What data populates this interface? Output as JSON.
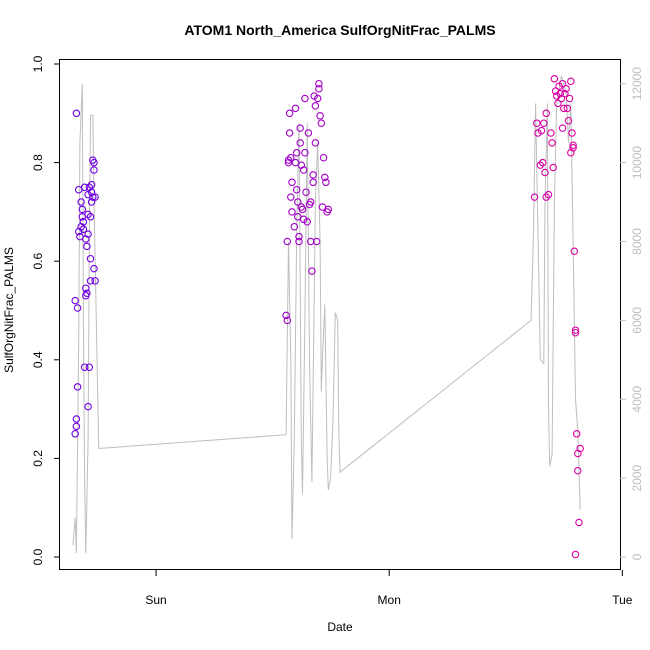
{
  "chart_data": {
    "type": "scatter",
    "title": "ATOM1 North_America SulfOrgNitFrac_PALMS",
    "xlabel": "Date",
    "ylabel": "SulfOrgNitFrac_PALMS",
    "x_ticks": [
      "Sun",
      "Mon",
      "Tue"
    ],
    "y_ticks": [
      "0.0",
      "0.2",
      "0.4",
      "0.6",
      "0.8",
      "1.0"
    ],
    "ylim": [
      0,
      1
    ],
    "y2_ticks": [
      "0",
      "2000",
      "4000",
      "6000",
      "8000",
      "10000",
      "12000"
    ],
    "y2lim": [
      0,
      12500
    ],
    "xlim": [
      -0.41,
      1.98
    ],
    "grid": false,
    "colors": {
      "points_start": "#6a00e8",
      "points_end": "#e8009a",
      "secondary_line": "#bebebe"
    },
    "points": [
      [
        -0.345,
        0.52
      ],
      [
        -0.34,
        0.9
      ],
      [
        -0.335,
        0.505
      ],
      [
        -0.34,
        0.28
      ],
      [
        -0.34,
        0.265
      ],
      [
        -0.345,
        0.25
      ],
      [
        -0.335,
        0.345
      ],
      [
        -0.33,
        0.745
      ],
      [
        -0.33,
        0.66
      ],
      [
        -0.325,
        0.65
      ],
      [
        -0.32,
        0.67
      ],
      [
        -0.32,
        0.72
      ],
      [
        -0.315,
        0.69
      ],
      [
        -0.315,
        0.705
      ],
      [
        -0.31,
        0.68
      ],
      [
        -0.31,
        0.665
      ],
      [
        -0.305,
        0.75
      ],
      [
        -0.3,
        0.645
      ],
      [
        -0.305,
        0.385
      ],
      [
        -0.3,
        0.53
      ],
      [
        -0.3,
        0.545
      ],
      [
        -0.295,
        0.535
      ],
      [
        -0.295,
        0.63
      ],
      [
        -0.29,
        0.655
      ],
      [
        -0.29,
        0.735
      ],
      [
        -0.29,
        0.695
      ],
      [
        -0.285,
        0.75
      ],
      [
        -0.29,
        0.305
      ],
      [
        -0.285,
        0.385
      ],
      [
        -0.28,
        0.56
      ],
      [
        -0.28,
        0.605
      ],
      [
        -0.28,
        0.69
      ],
      [
        -0.275,
        0.72
      ],
      [
        -0.275,
        0.74
      ],
      [
        -0.275,
        0.755
      ],
      [
        -0.27,
        0.805
      ],
      [
        -0.27,
        0.73
      ],
      [
        -0.265,
        0.8
      ],
      [
        -0.265,
        0.785
      ],
      [
        -0.265,
        0.585
      ],
      [
        -0.26,
        0.56
      ],
      [
        -0.26,
        0.73
      ],
      [
        0.555,
        0.49
      ],
      [
        0.56,
        0.48
      ],
      [
        0.56,
        0.64
      ],
      [
        0.565,
        0.8
      ],
      [
        0.565,
        0.805
      ],
      [
        0.57,
        0.9
      ],
      [
        0.57,
        0.86
      ],
      [
        0.575,
        0.81
      ],
      [
        0.575,
        0.73
      ],
      [
        0.58,
        0.76
      ],
      [
        0.58,
        0.7
      ],
      [
        0.59,
        0.67
      ],
      [
        0.595,
        0.8
      ],
      [
        0.595,
        0.91
      ],
      [
        0.6,
        0.82
      ],
      [
        0.6,
        0.745
      ],
      [
        0.605,
        0.72
      ],
      [
        0.605,
        0.69
      ],
      [
        0.61,
        0.64
      ],
      [
        0.61,
        0.65
      ],
      [
        0.615,
        0.87
      ],
      [
        0.615,
        0.84
      ],
      [
        0.62,
        0.795
      ],
      [
        0.62,
        0.71
      ],
      [
        0.625,
        0.705
      ],
      [
        0.63,
        0.785
      ],
      [
        0.63,
        0.685
      ],
      [
        0.635,
        0.93
      ],
      [
        0.635,
        0.82
      ],
      [
        0.64,
        0.74
      ],
      [
        0.645,
        0.68
      ],
      [
        0.65,
        0.86
      ],
      [
        0.655,
        0.715
      ],
      [
        0.66,
        0.72
      ],
      [
        0.66,
        0.64
      ],
      [
        0.665,
        0.58
      ],
      [
        0.67,
        0.775
      ],
      [
        0.67,
        0.76
      ],
      [
        0.675,
        0.935
      ],
      [
        0.68,
        0.915
      ],
      [
        0.68,
        0.84
      ],
      [
        0.685,
        0.64
      ],
      [
        0.69,
        0.93
      ],
      [
        0.695,
        0.96
      ],
      [
        0.695,
        0.95
      ],
      [
        0.7,
        0.895
      ],
      [
        0.705,
        0.88
      ],
      [
        0.71,
        0.71
      ],
      [
        0.715,
        0.81
      ],
      [
        0.72,
        0.77
      ],
      [
        0.725,
        0.76
      ],
      [
        0.73,
        0.7
      ],
      [
        0.735,
        0.705
      ],
      [
        1.615,
        0.73
      ],
      [
        1.625,
        0.88
      ],
      [
        1.63,
        0.86
      ],
      [
        1.64,
        0.795
      ],
      [
        1.645,
        0.865
      ],
      [
        1.65,
        0.8
      ],
      [
        1.655,
        0.88
      ],
      [
        1.66,
        0.78
      ],
      [
        1.665,
        0.9
      ],
      [
        1.665,
        0.73
      ],
      [
        1.675,
        0.735
      ],
      [
        1.685,
        0.86
      ],
      [
        1.69,
        0.84
      ],
      [
        1.695,
        0.79
      ],
      [
        1.7,
        0.97
      ],
      [
        1.705,
        0.945
      ],
      [
        1.71,
        0.935
      ],
      [
        1.715,
        0.92
      ],
      [
        1.72,
        0.955
      ],
      [
        1.725,
        0.94
      ],
      [
        1.73,
        0.93
      ],
      [
        1.735,
        0.96
      ],
      [
        1.735,
        0.87
      ],
      [
        1.74,
        0.91
      ],
      [
        1.745,
        0.94
      ],
      [
        1.75,
        0.95
      ],
      [
        1.755,
        0.91
      ],
      [
        1.76,
        0.885
      ],
      [
        1.765,
        0.93
      ],
      [
        1.77,
        0.82
      ],
      [
        1.77,
        0.965
      ],
      [
        1.775,
        0.86
      ],
      [
        1.78,
        0.835
      ],
      [
        1.78,
        0.83
      ],
      [
        1.785,
        0.62
      ],
      [
        1.79,
        0.46
      ],
      [
        1.79,
        0.455
      ],
      [
        1.795,
        0.25
      ],
      [
        1.8,
        0.175
      ],
      [
        1.8,
        0.21
      ],
      [
        1.805,
        0.07
      ],
      [
        1.81,
        0.22
      ],
      [
        1.79,
        0.005
      ]
    ],
    "secondary_series": [
      [
        -0.355,
        300
      ],
      [
        -0.345,
        1000
      ],
      [
        -0.34,
        100
      ],
      [
        -0.33,
        5500
      ],
      [
        -0.325,
        10500
      ],
      [
        -0.315,
        12000
      ],
      [
        -0.31,
        6000
      ],
      [
        -0.305,
        2000
      ],
      [
        -0.3,
        100
      ],
      [
        -0.29,
        3000
      ],
      [
        -0.285,
        8000
      ],
      [
        -0.28,
        11200
      ],
      [
        -0.27,
        11200
      ],
      [
        -0.265,
        9000
      ],
      [
        -0.255,
        6000
      ],
      [
        -0.245,
        2750
      ],
      [
        0.555,
        3100
      ],
      [
        0.565,
        8000
      ],
      [
        0.575,
        5000
      ],
      [
        0.58,
        450
      ],
      [
        0.59,
        3000
      ],
      [
        0.6,
        8200
      ],
      [
        0.61,
        11000
      ],
      [
        0.615,
        7000
      ],
      [
        0.62,
        3000
      ],
      [
        0.625,
        1600
      ],
      [
        0.635,
        6000
      ],
      [
        0.645,
        11000
      ],
      [
        0.65,
        8000
      ],
      [
        0.655,
        5000
      ],
      [
        0.665,
        1900
      ],
      [
        0.68,
        9000
      ],
      [
        0.69,
        10500
      ],
      [
        0.7,
        8000
      ],
      [
        0.705,
        4200
      ],
      [
        0.71,
        5000
      ],
      [
        0.72,
        6400
      ],
      [
        0.73,
        2600
      ],
      [
        0.735,
        1700
      ],
      [
        0.745,
        2000
      ],
      [
        0.755,
        3500
      ],
      [
        0.765,
        6200
      ],
      [
        0.775,
        6000
      ],
      [
        0.78,
        3200
      ],
      [
        0.785,
        2150
      ],
      [
        1.6,
        6000
      ],
      [
        1.61,
        8000
      ],
      [
        1.62,
        11500
      ],
      [
        1.64,
        5000
      ],
      [
        1.655,
        4900
      ],
      [
        1.66,
        9000
      ],
      [
        1.67,
        11500
      ],
      [
        1.675,
        3800
      ],
      [
        1.68,
        2300
      ],
      [
        1.69,
        2600
      ],
      [
        1.7,
        9000
      ],
      [
        1.71,
        11500
      ],
      [
        1.73,
        12200
      ],
      [
        1.75,
        11800
      ],
      [
        1.76,
        10500
      ],
      [
        1.77,
        11500
      ],
      [
        1.78,
        8000
      ],
      [
        1.785,
        6000
      ],
      [
        1.79,
        4000
      ],
      [
        1.8,
        3200
      ],
      [
        1.81,
        1200
      ]
    ]
  }
}
